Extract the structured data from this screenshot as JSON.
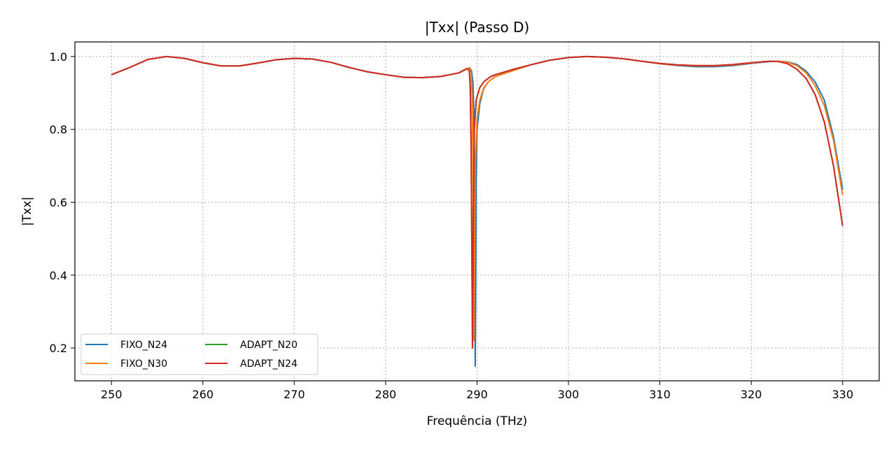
{
  "chart_data": {
    "type": "line",
    "title": "|Txx| (Passo D)",
    "xlabel": "Frequência (THz)",
    "ylabel": "|Txx|",
    "xlim": [
      246,
      334
    ],
    "ylim": [
      0.11,
      1.04
    ],
    "xticks": [
      250,
      260,
      270,
      280,
      290,
      300,
      310,
      320,
      330
    ],
    "yticks": [
      0.2,
      0.4,
      0.6,
      0.8,
      1.0
    ],
    "xtick_labels": [
      "250",
      "260",
      "270",
      "280",
      "290",
      "300",
      "310",
      "320",
      "330"
    ],
    "ytick_labels": [
      "0.2",
      "0.4",
      "0.6",
      "0.8",
      "1.0"
    ],
    "grid": true,
    "legend": {
      "placement": "lower-left",
      "columns": 2
    },
    "series": [
      {
        "name": "FIXO_N24",
        "color": "#1f77b4",
        "points": [
          [
            250,
            0.95
          ],
          [
            252,
            0.97
          ],
          [
            254,
            0.992
          ],
          [
            256,
            1.0
          ],
          [
            258,
            0.995
          ],
          [
            260,
            0.983
          ],
          [
            262,
            0.974
          ],
          [
            264,
            0.974
          ],
          [
            266,
            0.982
          ],
          [
            268,
            0.991
          ],
          [
            270,
            0.995
          ],
          [
            272,
            0.993
          ],
          [
            274,
            0.984
          ],
          [
            276,
            0.97
          ],
          [
            278,
            0.958
          ],
          [
            280,
            0.95
          ],
          [
            282,
            0.943
          ],
          [
            284,
            0.942
          ],
          [
            286,
            0.945
          ],
          [
            288,
            0.955
          ],
          [
            289,
            0.967
          ],
          [
            289.2,
            0.969
          ],
          [
            289.4,
            0.96
          ],
          [
            289.55,
            0.93
          ],
          [
            289.65,
            0.85
          ],
          [
            289.72,
            0.6
          ],
          [
            289.76,
            0.35
          ],
          [
            289.8,
            0.15
          ],
          [
            289.85,
            0.35
          ],
          [
            289.9,
            0.65
          ],
          [
            290,
            0.8
          ],
          [
            290.3,
            0.87
          ],
          [
            290.7,
            0.91
          ],
          [
            291.2,
            0.93
          ],
          [
            292,
            0.945
          ],
          [
            294,
            0.962
          ],
          [
            296,
            0.978
          ],
          [
            298,
            0.99
          ],
          [
            300,
            0.997
          ],
          [
            302,
            1.0
          ],
          [
            304,
            0.998
          ],
          [
            306,
            0.994
          ],
          [
            308,
            0.987
          ],
          [
            310,
            0.98
          ],
          [
            312,
            0.975
          ],
          [
            314,
            0.972
          ],
          [
            316,
            0.972
          ],
          [
            318,
            0.975
          ],
          [
            320,
            0.981
          ],
          [
            322,
            0.986
          ],
          [
            323,
            0.987
          ],
          [
            324,
            0.985
          ],
          [
            325,
            0.978
          ],
          [
            326,
            0.96
          ],
          [
            327,
            0.93
          ],
          [
            328,
            0.88
          ],
          [
            329,
            0.78
          ],
          [
            330,
            0.635
          ]
        ]
      },
      {
        "name": "FIXO_N30",
        "color": "#ff7f0e",
        "points": [
          [
            250,
            0.95
          ],
          [
            252,
            0.97
          ],
          [
            254,
            0.992
          ],
          [
            256,
            1.0
          ],
          [
            258,
            0.995
          ],
          [
            260,
            0.983
          ],
          [
            262,
            0.974
          ],
          [
            264,
            0.974
          ],
          [
            266,
            0.982
          ],
          [
            268,
            0.991
          ],
          [
            270,
            0.995
          ],
          [
            272,
            0.993
          ],
          [
            274,
            0.984
          ],
          [
            276,
            0.97
          ],
          [
            278,
            0.958
          ],
          [
            280,
            0.95
          ],
          [
            282,
            0.943
          ],
          [
            284,
            0.942
          ],
          [
            286,
            0.945
          ],
          [
            288,
            0.955
          ],
          [
            289,
            0.967
          ],
          [
            289.2,
            0.968
          ],
          [
            289.35,
            0.955
          ],
          [
            289.45,
            0.9
          ],
          [
            289.55,
            0.7
          ],
          [
            289.62,
            0.4
          ],
          [
            289.66,
            0.22
          ],
          [
            289.72,
            0.45
          ],
          [
            289.8,
            0.7
          ],
          [
            290,
            0.83
          ],
          [
            290.3,
            0.88
          ],
          [
            290.7,
            0.912
          ],
          [
            291.2,
            0.93
          ],
          [
            292,
            0.945
          ],
          [
            294,
            0.962
          ],
          [
            296,
            0.978
          ],
          [
            298,
            0.99
          ],
          [
            300,
            0.997
          ],
          [
            302,
            1.0
          ],
          [
            304,
            0.998
          ],
          [
            306,
            0.994
          ],
          [
            308,
            0.987
          ],
          [
            310,
            0.98
          ],
          [
            312,
            0.976
          ],
          [
            314,
            0.974
          ],
          [
            316,
            0.974
          ],
          [
            318,
            0.977
          ],
          [
            320,
            0.982
          ],
          [
            322,
            0.987
          ],
          [
            323,
            0.987
          ],
          [
            324,
            0.984
          ],
          [
            325,
            0.975
          ],
          [
            326,
            0.955
          ],
          [
            327,
            0.92
          ],
          [
            328,
            0.865
          ],
          [
            329,
            0.77
          ],
          [
            330,
            0.62
          ]
        ]
      },
      {
        "name": "ADAPT_N20",
        "color": "#2ca02c",
        "points": [
          [
            250,
            0.95
          ],
          [
            252,
            0.97
          ],
          [
            254,
            0.992
          ],
          [
            256,
            1.0
          ],
          [
            258,
            0.995
          ],
          [
            260,
            0.983
          ],
          [
            262,
            0.974
          ],
          [
            264,
            0.974
          ],
          [
            266,
            0.982
          ],
          [
            268,
            0.991
          ],
          [
            270,
            0.995
          ],
          [
            272,
            0.993
          ],
          [
            274,
            0.984
          ],
          [
            276,
            0.97
          ],
          [
            278,
            0.958
          ],
          [
            280,
            0.95
          ],
          [
            282,
            0.943
          ],
          [
            284,
            0.942
          ],
          [
            286,
            0.945
          ],
          [
            288,
            0.955
          ],
          [
            288.8,
            0.966
          ],
          [
            289,
            0.967
          ],
          [
            289.15,
            0.96
          ],
          [
            289.25,
            0.92
          ],
          [
            289.35,
            0.75
          ],
          [
            289.45,
            0.4
          ],
          [
            289.5,
            0.2
          ],
          [
            289.58,
            0.5
          ],
          [
            289.7,
            0.8
          ],
          [
            289.9,
            0.88
          ],
          [
            290.3,
            0.915
          ],
          [
            290.8,
            0.932
          ],
          [
            291.5,
            0.945
          ],
          [
            292,
            0.95
          ],
          [
            294,
            0.965
          ],
          [
            296,
            0.978
          ],
          [
            298,
            0.99
          ],
          [
            300,
            0.997
          ],
          [
            302,
            1.0
          ],
          [
            304,
            0.998
          ],
          [
            306,
            0.994
          ],
          [
            308,
            0.987
          ],
          [
            310,
            0.981
          ],
          [
            312,
            0.977
          ],
          [
            314,
            0.975
          ],
          [
            316,
            0.975
          ],
          [
            318,
            0.978
          ],
          [
            320,
            0.983
          ],
          [
            322,
            0.987
          ],
          [
            323,
            0.986
          ],
          [
            324,
            0.98
          ],
          [
            325,
            0.965
          ],
          [
            326,
            0.94
          ],
          [
            327,
            0.895
          ],
          [
            328,
            0.82
          ],
          [
            329,
            0.7
          ],
          [
            330,
            0.535
          ]
        ]
      },
      {
        "name": "ADAPT_N24",
        "color": "#d62728",
        "points": [
          [
            250,
            0.95
          ],
          [
            252,
            0.97
          ],
          [
            254,
            0.992
          ],
          [
            256,
            1.0
          ],
          [
            258,
            0.995
          ],
          [
            260,
            0.983
          ],
          [
            262,
            0.974
          ],
          [
            264,
            0.974
          ],
          [
            266,
            0.982
          ],
          [
            268,
            0.991
          ],
          [
            270,
            0.995
          ],
          [
            272,
            0.993
          ],
          [
            274,
            0.984
          ],
          [
            276,
            0.97
          ],
          [
            278,
            0.958
          ],
          [
            280,
            0.95
          ],
          [
            282,
            0.943
          ],
          [
            284,
            0.942
          ],
          [
            286,
            0.945
          ],
          [
            288,
            0.955
          ],
          [
            288.8,
            0.966
          ],
          [
            289,
            0.967
          ],
          [
            289.15,
            0.96
          ],
          [
            289.25,
            0.92
          ],
          [
            289.35,
            0.75
          ],
          [
            289.45,
            0.4
          ],
          [
            289.5,
            0.2
          ],
          [
            289.58,
            0.5
          ],
          [
            289.7,
            0.8
          ],
          [
            289.9,
            0.88
          ],
          [
            290.3,
            0.915
          ],
          [
            290.8,
            0.932
          ],
          [
            291.5,
            0.945
          ],
          [
            292,
            0.95
          ],
          [
            294,
            0.965
          ],
          [
            296,
            0.978
          ],
          [
            298,
            0.99
          ],
          [
            300,
            0.997
          ],
          [
            302,
            1.0
          ],
          [
            304,
            0.998
          ],
          [
            306,
            0.994
          ],
          [
            308,
            0.987
          ],
          [
            310,
            0.981
          ],
          [
            312,
            0.977
          ],
          [
            314,
            0.975
          ],
          [
            316,
            0.975
          ],
          [
            318,
            0.978
          ],
          [
            320,
            0.983
          ],
          [
            322,
            0.987
          ],
          [
            323,
            0.986
          ],
          [
            324,
            0.98
          ],
          [
            325,
            0.965
          ],
          [
            326,
            0.94
          ],
          [
            327,
            0.895
          ],
          [
            328,
            0.82
          ],
          [
            329,
            0.7
          ],
          [
            330,
            0.535
          ]
        ]
      }
    ]
  }
}
